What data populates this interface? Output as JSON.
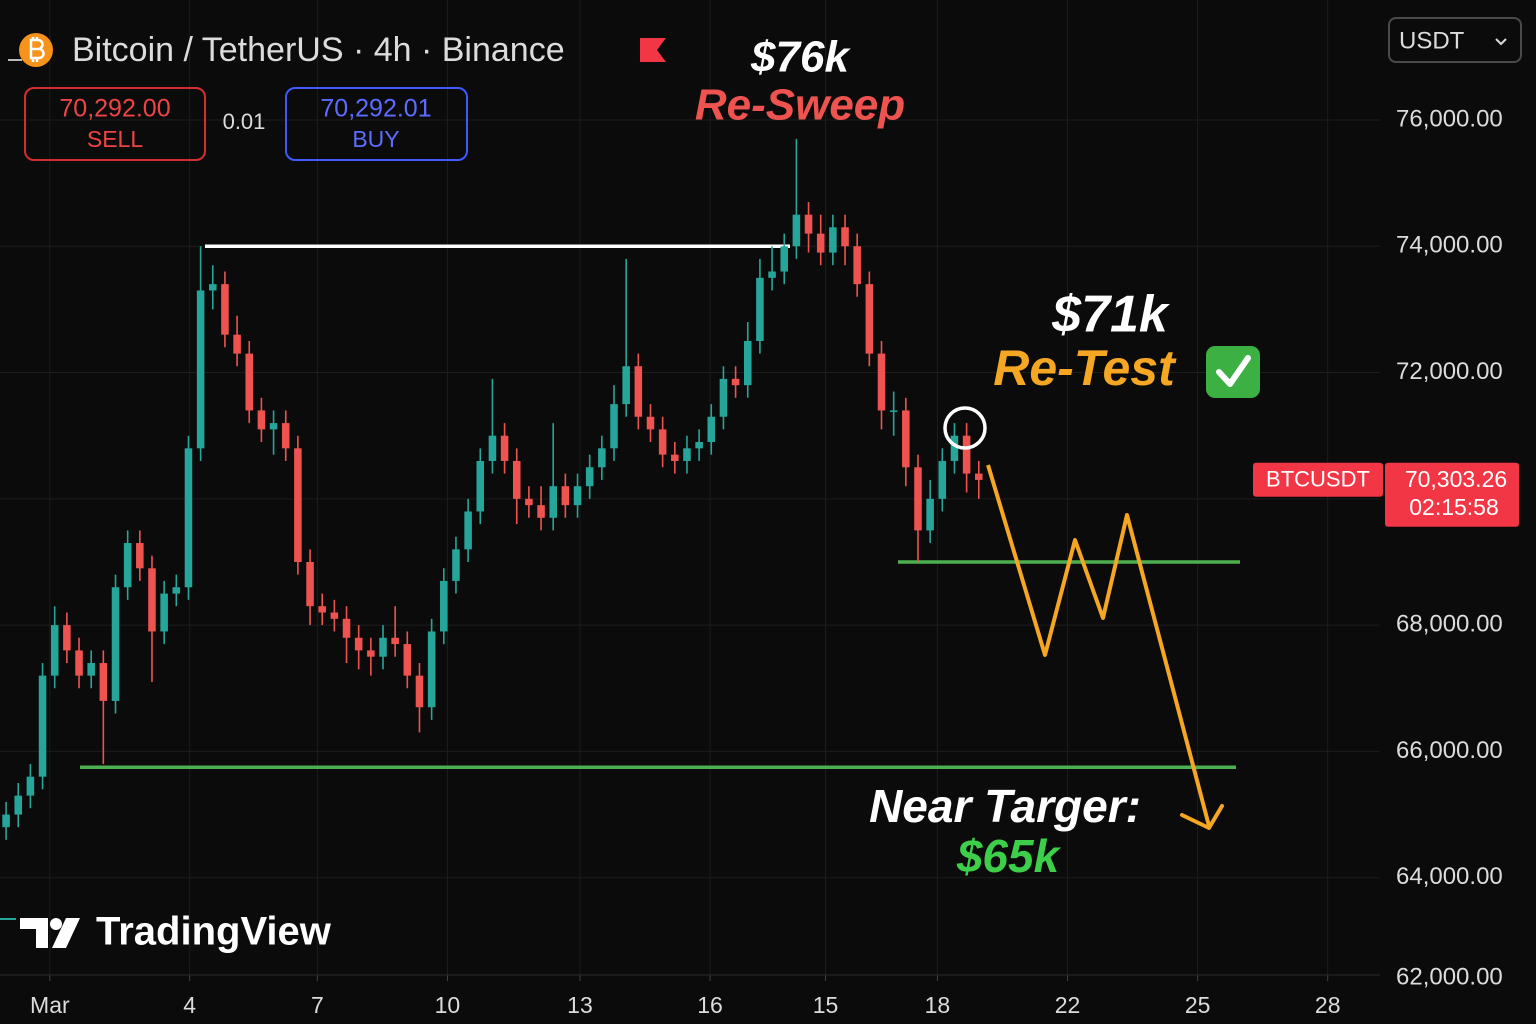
{
  "chart_data": {
    "type": "candlestick",
    "title": "Bitcoin / TetherUS · 4h · Binance",
    "up_color": "#26a69a",
    "down_color": "#ef5350",
    "open": [
      64800,
      65000,
      65300,
      65600,
      67200,
      68000,
      67600,
      67200,
      67400,
      66800,
      68600,
      69300,
      68900,
      67900,
      68500,
      68600,
      70800,
      73300,
      73400,
      72600,
      72300,
      71400,
      71100,
      71200,
      70800,
      69000,
      68300,
      68200,
      68100,
      67800,
      67600,
      67500,
      67800,
      67700,
      67200,
      66700,
      67900,
      68700,
      69200,
      69800,
      70600,
      71000,
      70600,
      70000,
      69900,
      69700,
      70200,
      69900,
      70200,
      70500,
      70800,
      71500,
      72100,
      71300,
      71100,
      70700,
      70600,
      70800,
      70900,
      71300,
      71900,
      71800,
      72500,
      73500,
      73600,
      74000,
      74500,
      74200,
      73900,
      74300,
      74000,
      73400,
      72300,
      71400,
      71400,
      70500,
      69500,
      70000,
      70600,
      71000,
      70400
    ],
    "high": [
      65200,
      65500,
      65800,
      67400,
      68300,
      68200,
      67800,
      67600,
      67600,
      68800,
      69500,
      69500,
      69100,
      68700,
      68800,
      71000,
      74000,
      73700,
      73600,
      72900,
      72500,
      71600,
      71400,
      71400,
      71000,
      69200,
      68500,
      68400,
      68300,
      68000,
      67800,
      68000,
      68300,
      67900,
      67400,
      68100,
      68900,
      69400,
      70000,
      70800,
      71900,
      71200,
      70800,
      70200,
      70200,
      71200,
      70400,
      70400,
      70700,
      71000,
      71800,
      73800,
      72300,
      71500,
      71300,
      70900,
      71000,
      71100,
      71500,
      72100,
      72100,
      72800,
      73800,
      74000,
      74200,
      75700,
      74700,
      74500,
      74500,
      74500,
      74200,
      73600,
      72500,
      71700,
      71600,
      70700,
      70300,
      70800,
      71200,
      71200,
      70600
    ],
    "low": [
      64600,
      64800,
      65100,
      65400,
      67000,
      67400,
      67000,
      67000,
      65800,
      66600,
      68400,
      68700,
      67100,
      67700,
      68300,
      68400,
      70600,
      73000,
      72400,
      72100,
      71200,
      70900,
      70700,
      70600,
      68800,
      68000,
      68000,
      67900,
      67400,
      67300,
      67200,
      67300,
      67500,
      67000,
      66300,
      66500,
      67700,
      68500,
      69000,
      69600,
      70400,
      70400,
      69600,
      69700,
      69500,
      69500,
      69700,
      69700,
      70000,
      70300,
      70600,
      71300,
      71100,
      70900,
      70500,
      70400,
      70400,
      70600,
      70700,
      71100,
      71600,
      71600,
      72300,
      73300,
      73400,
      73800,
      73900,
      73700,
      73700,
      73700,
      73200,
      72100,
      71100,
      71000,
      70200,
      69000,
      69300,
      69800,
      70400,
      70100,
      70000
    ],
    "close": [
      65000,
      65300,
      65600,
      67200,
      68000,
      67600,
      67200,
      67400,
      66800,
      68600,
      69300,
      68900,
      67900,
      68500,
      68600,
      70800,
      73300,
      73400,
      72600,
      72300,
      71400,
      71100,
      71200,
      70800,
      69000,
      68300,
      68200,
      68100,
      67800,
      67600,
      67500,
      67800,
      67700,
      67200,
      66700,
      67900,
      68700,
      69200,
      69800,
      70600,
      71000,
      70600,
      70000,
      69900,
      69700,
      70200,
      69900,
      70200,
      70500,
      70800,
      71500,
      72100,
      71300,
      71100,
      70700,
      70600,
      70800,
      70900,
      71300,
      71900,
      71800,
      72500,
      73500,
      73600,
      74000,
      74500,
      74200,
      73900,
      74300,
      74000,
      73400,
      72300,
      71400,
      71400,
      70500,
      69500,
      70000,
      70600,
      71000,
      70400,
      70300
    ],
    "ylim": [
      62000,
      77900
    ],
    "yticks": [
      {
        "value": 76000,
        "label": "76,000.00"
      },
      {
        "value": 74000,
        "label": "74,000.00"
      },
      {
        "value": 72000,
        "label": "72,000.00"
      },
      {
        "value": 70000,
        "label": "70,000.00"
      },
      {
        "value": 68000,
        "label": "68,000.00"
      },
      {
        "value": 66000,
        "label": "66,000.00"
      },
      {
        "value": 64000,
        "label": "64,000.00"
      },
      {
        "value": 62000,
        "label": "62,000.00"
      }
    ],
    "xlim": [
      -0.5,
      113
    ],
    "xticks": [
      {
        "value": 3.6,
        "label": "Mar"
      },
      {
        "value": 15.1,
        "label": "4"
      },
      {
        "value": 25.6,
        "label": "7"
      },
      {
        "value": 36.3,
        "label": "10"
      },
      {
        "value": 47.2,
        "label": "13"
      },
      {
        "value": 57.9,
        "label": "16"
      },
      {
        "value": 67.4,
        "label": "15"
      },
      {
        "value": 76.6,
        "label": "18"
      },
      {
        "value": 87.3,
        "label": "22"
      },
      {
        "value": 98.0,
        "label": "25"
      },
      {
        "value": 108.7,
        "label": "28"
      }
    ],
    "grid": true,
    "levels": [
      {
        "value": 74000,
        "color": "#ffffff"
      },
      {
        "value": 69000,
        "color": "#4caf50"
      },
      {
        "value": 65750,
        "color": "#4caf50"
      }
    ],
    "last_price": {
      "symbol": "BTCUSDT",
      "value": 70303.26,
      "label": "70,303.26",
      "countdown": "02:15:58",
      "color": "#f23645"
    },
    "annotations": [
      {
        "price": "$76k",
        "text": "Re-Sweep"
      },
      {
        "price": "$71k",
        "text": "Re-Test"
      },
      {
        "text": "Near Targer:",
        "price": "$65k"
      }
    ]
  },
  "toolbar": {
    "sell_price": "70,292.00",
    "sell": "SELL",
    "spread": "0.01",
    "buy_price": "70,292.01",
    "buy": "BUY",
    "currency": "USDT"
  },
  "watermark": "TradingView"
}
